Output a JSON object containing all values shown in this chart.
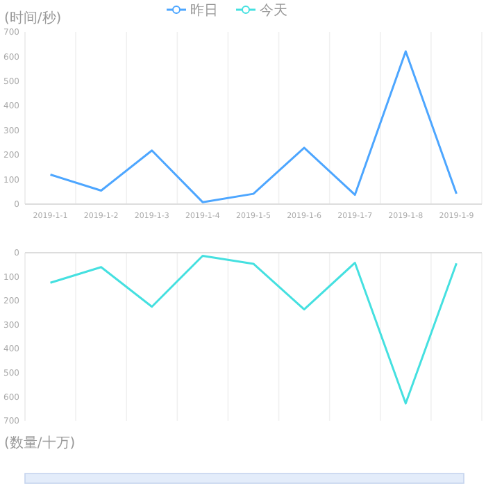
{
  "chart_data": [
    {
      "type": "line",
      "ylabel": "(时间/秒)",
      "categories": [
        "2019-1-1",
        "2019-1-2",
        "2019-1-3",
        "2019-1-4",
        "2019-1-5",
        "2019-1-6",
        "2019-1-7",
        "2019-1-8",
        "2019-1-9"
      ],
      "series": [
        {
          "name": "昨日",
          "color": "#4da6ff",
          "values": [
            120,
            55,
            218,
            8,
            42,
            229,
            38,
            621,
            42
          ]
        }
      ],
      "ylim": [
        0,
        700
      ],
      "yticks": [
        0,
        100,
        200,
        300,
        400,
        500,
        600,
        700
      ],
      "grid": "x",
      "legend": "top",
      "marker": "none"
    },
    {
      "type": "line",
      "ylabel": "(数量/十万)",
      "categories": [
        null,
        null,
        null,
        null,
        null,
        null,
        null,
        null,
        null
      ],
      "series": [
        {
          "name": "今天",
          "color": "#45e0e0",
          "values": [
            125,
            60,
            225,
            13,
            46,
            236,
            42,
            628,
            44
          ]
        }
      ],
      "ylim": [
        700,
        0
      ],
      "yticks": [
        0,
        100,
        200,
        300,
        400,
        500,
        600,
        700
      ],
      "grid": "x",
      "legend": "top",
      "marker": "none",
      "tick_labels": "y"
    }
  ]
}
